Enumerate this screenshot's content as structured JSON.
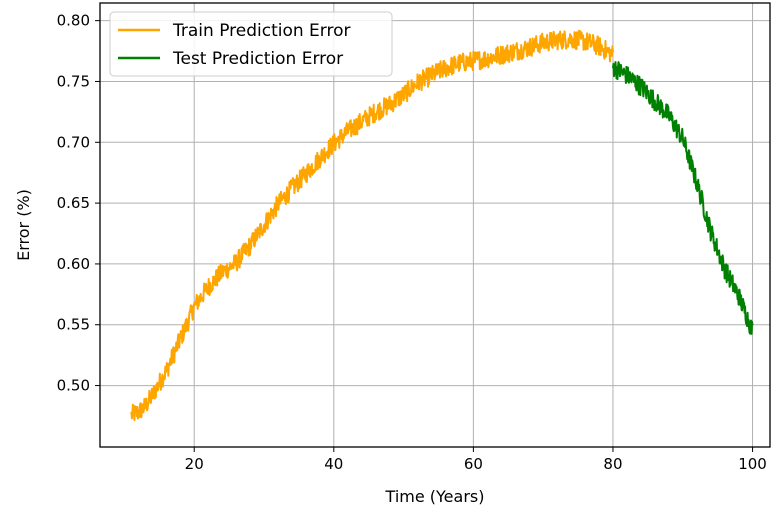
{
  "chart_data": {
    "type": "line",
    "title": "",
    "xlabel": "Time (Years)",
    "ylabel": "Error (%)",
    "xlim": [
      6.5,
      102.5
    ],
    "ylim": [
      0.4495,
      0.8145
    ],
    "x_ticks": [
      20,
      40,
      60,
      80,
      100
    ],
    "x_tick_labels": [
      "20",
      "40",
      "60",
      "80",
      "100"
    ],
    "y_ticks": [
      0.5,
      0.55,
      0.6,
      0.65,
      0.7,
      0.75,
      0.8
    ],
    "y_tick_labels": [
      "0.50",
      "0.55",
      "0.60",
      "0.65",
      "0.70",
      "0.75",
      "0.80"
    ],
    "grid": true,
    "legend": "top-left",
    "series": [
      {
        "name": "Train Prediction Error",
        "color": "#ffa500",
        "x": [
          11,
          12,
          13,
          14,
          15,
          16,
          17,
          18,
          19,
          20,
          22,
          24,
          26,
          28,
          30,
          32,
          34,
          36,
          38,
          40,
          42,
          44,
          46,
          48,
          50,
          52,
          54,
          56,
          58,
          60,
          62,
          64,
          66,
          68,
          70,
          72,
          74,
          76,
          78,
          80
        ],
        "y": [
          0.476,
          0.478,
          0.483,
          0.492,
          0.502,
          0.512,
          0.525,
          0.538,
          0.551,
          0.565,
          0.581,
          0.593,
          0.601,
          0.615,
          0.632,
          0.649,
          0.662,
          0.674,
          0.687,
          0.699,
          0.709,
          0.717,
          0.725,
          0.731,
          0.739,
          0.749,
          0.755,
          0.761,
          0.765,
          0.767,
          0.769,
          0.772,
          0.775,
          0.778,
          0.782,
          0.784,
          0.785,
          0.783,
          0.779,
          0.772
        ],
        "noise": 0.008
      },
      {
        "name": "Test Prediction Error",
        "color": "#008000",
        "x": [
          80,
          82,
          84,
          86,
          88,
          90,
          92,
          94,
          96,
          98,
          100
        ],
        "y": [
          0.762,
          0.755,
          0.746,
          0.734,
          0.722,
          0.703,
          0.667,
          0.627,
          0.596,
          0.574,
          0.545
        ],
        "noise": 0.008
      }
    ]
  }
}
